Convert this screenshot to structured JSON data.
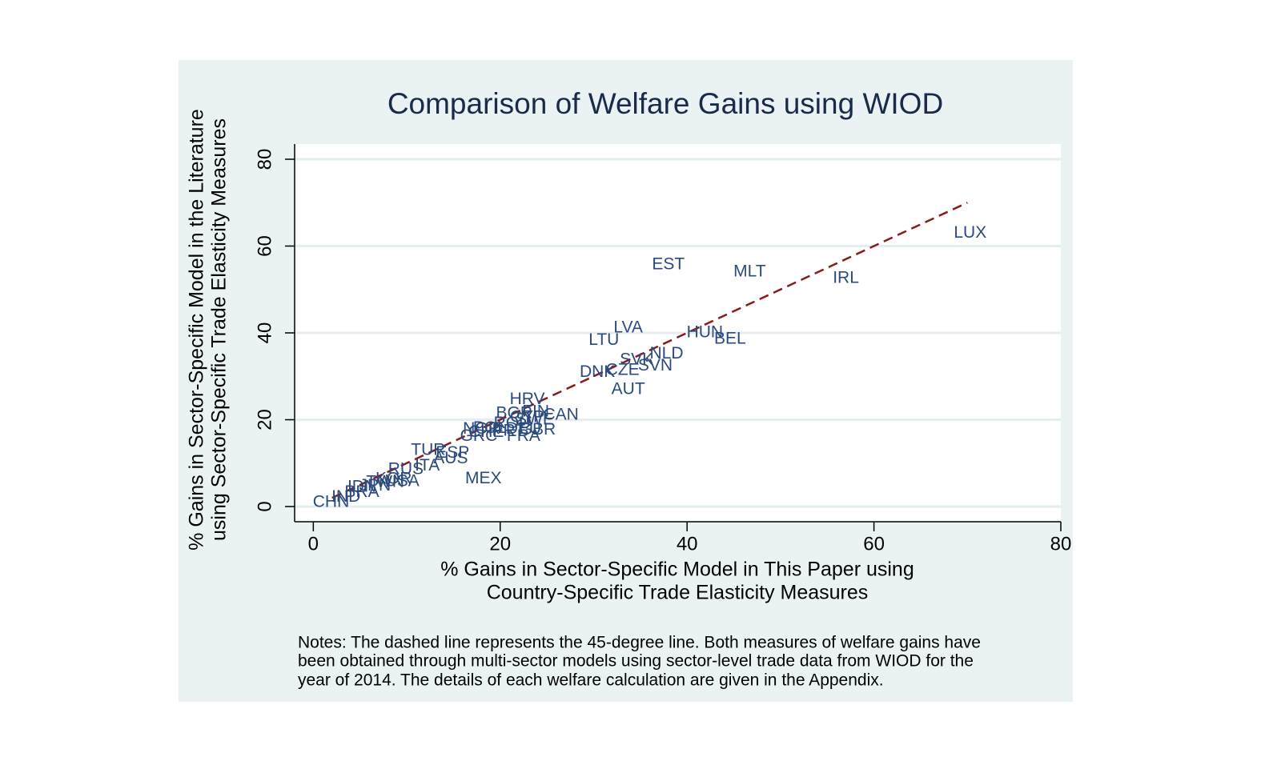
{
  "chart_data": {
    "type": "scatter",
    "title": "Comparison of Welfare Gains using WIOD",
    "xlabel": [
      "% Gains in Sector-Specific Model in This Paper using",
      "Country-Specific Trade Elasticity Measures"
    ],
    "ylabel": [
      "% Gains in Sector-Specific Model in the Literature",
      "using Sector-Specific Trade Elasticity Measures"
    ],
    "notes": [
      "Notes: The dashed line represents the 45-degree line. Both measures of welfare gains have",
      "been obtained through multi-sector models using sector-level trade data from WIOD for the",
      "year of 2014. The details of each welfare calculation are given in the Appendix."
    ],
    "xlim": [
      -2,
      80
    ],
    "ylim": [
      -3.5,
      83.5
    ],
    "xticks": [
      0,
      20,
      40,
      60,
      80
    ],
    "yticks": [
      0,
      20,
      40,
      60,
      80
    ],
    "grid": true,
    "label_color": "#2b4a7d",
    "labels": [
      "LUX",
      "EST",
      "MLT",
      "IRL",
      "LVA",
      "LTU",
      "HUN",
      "BEL",
      "NLD",
      "SVK",
      "SVN",
      "CZE",
      "DNK",
      "AUT",
      "HRV",
      "BGR",
      "FIN",
      "CYP",
      "SWE",
      "CAN",
      "ROU",
      "NOR",
      "POL",
      "CHE",
      "PRT",
      "DEU",
      "GBR",
      "GRC",
      "FRA",
      "TUR",
      "ESP",
      "AUS",
      "ITA",
      "RUS",
      "MEX",
      "KOR",
      "USA",
      "TWN",
      "JPN",
      "IDN",
      "BRA",
      "IND",
      "CHN"
    ],
    "x": [
      70.3,
      38.0,
      46.7,
      57.0,
      33.7,
      31.1,
      41.9,
      44.6,
      37.8,
      34.6,
      36.6,
      33.1,
      30.4,
      33.7,
      22.9,
      21.5,
      23.8,
      22.9,
      23.7,
      26.5,
      21.3,
      18.0,
      18.9,
      18.5,
      20.9,
      22.5,
      24.0,
      17.7,
      22.5,
      12.3,
      14.9,
      14.7,
      12.2,
      9.9,
      18.2,
      8.6,
      9.5,
      7.7,
      6.6,
      5.2,
      5.2,
      3.5,
      1.9
    ],
    "y": [
      63.0,
      55.7,
      54.0,
      52.5,
      41.1,
      38.3,
      40.0,
      38.5,
      35.1,
      33.7,
      32.4,
      31.3,
      30.9,
      26.9,
      24.6,
      21.4,
      21.8,
      20.5,
      19.9,
      21.0,
      19.1,
      17.8,
      18.0,
      17.1,
      17.3,
      17.8,
      17.6,
      16.1,
      16.1,
      12.9,
      12.3,
      11.0,
      9.3,
      8.5,
      6.4,
      6.3,
      5.7,
      5.5,
      4.7,
      4.4,
      3.2,
      2.1,
      0.9
    ],
    "reference_line": {
      "x": [
        2,
        70
      ],
      "y": [
        2,
        70
      ],
      "color": "#8b1a1a",
      "dashed": true
    }
  }
}
